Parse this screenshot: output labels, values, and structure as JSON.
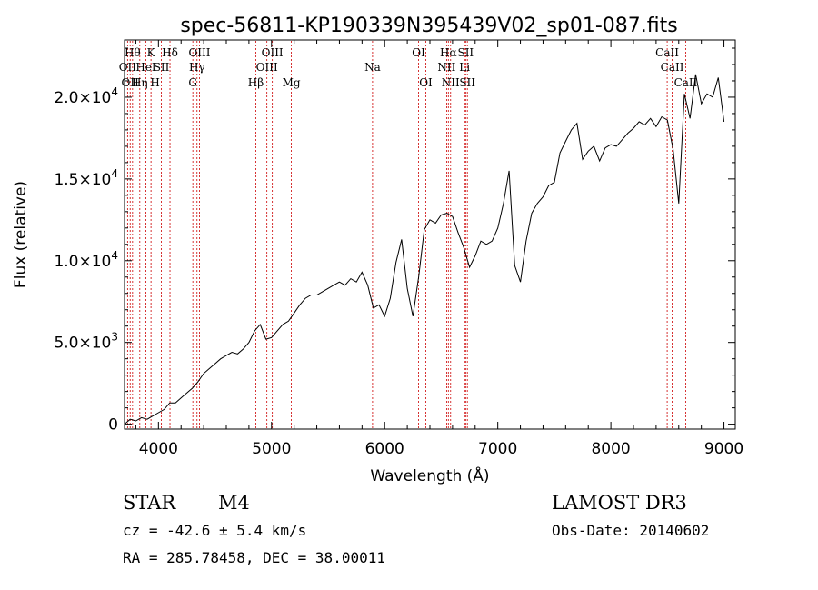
{
  "chart_data": {
    "type": "line",
    "title": "spec-56811-KP190339N395439V02_sp01-087.fits",
    "xlabel": "Wavelength (Å)",
    "ylabel": "Flux (relative)",
    "xlim": [
      3700,
      9100
    ],
    "ylim": [
      -300,
      23500
    ],
    "x_ticks": [
      {
        "value": 4000,
        "label": "4000"
      },
      {
        "value": 5000,
        "label": "5000"
      },
      {
        "value": 6000,
        "label": "6000"
      },
      {
        "value": 7000,
        "label": "7000"
      },
      {
        "value": 8000,
        "label": "8000"
      },
      {
        "value": 9000,
        "label": "9000"
      }
    ],
    "y_ticks": [
      {
        "value": 0,
        "base": "0",
        "exp": ""
      },
      {
        "value": 5000,
        "base": "5.0×10",
        "exp": "3"
      },
      {
        "value": 10000,
        "base": "1.0×10",
        "exp": "4"
      },
      {
        "value": 15000,
        "base": "1.5×10",
        "exp": "4"
      },
      {
        "value": 20000,
        "base": "2.0×10",
        "exp": "4"
      }
    ],
    "series": [
      {
        "name": "spectrum",
        "x": [
          3700,
          3750,
          3800,
          3850,
          3900,
          3950,
          4000,
          4050,
          4100,
          4150,
          4200,
          4250,
          4300,
          4350,
          4400,
          4450,
          4500,
          4550,
          4600,
          4650,
          4700,
          4750,
          4800,
          4850,
          4900,
          4950,
          5000,
          5050,
          5100,
          5150,
          5200,
          5250,
          5300,
          5350,
          5400,
          5450,
          5500,
          5550,
          5600,
          5650,
          5700,
          5750,
          5800,
          5850,
          5900,
          5950,
          6000,
          6050,
          6100,
          6150,
          6200,
          6250,
          6300,
          6350,
          6400,
          6450,
          6500,
          6550,
          6600,
          6650,
          6700,
          6750,
          6800,
          6850,
          6900,
          6950,
          7000,
          7050,
          7100,
          7150,
          7200,
          7250,
          7300,
          7350,
          7400,
          7450,
          7500,
          7550,
          7600,
          7650,
          7700,
          7750,
          7800,
          7850,
          7900,
          7950,
          8000,
          8050,
          8100,
          8150,
          8200,
          8250,
          8300,
          8350,
          8400,
          8450,
          8500,
          8550,
          8600,
          8650,
          8700,
          8750,
          8800,
          8850,
          8900,
          8950,
          9000
        ],
        "y": [
          0,
          300,
          200,
          400,
          300,
          500,
          700,
          900,
          1300,
          1300,
          1600,
          1900,
          2200,
          2600,
          3100,
          3400,
          3700,
          4000,
          4200,
          4400,
          4300,
          4600,
          5000,
          5700,
          6100,
          5200,
          5300,
          5700,
          6100,
          6300,
          6800,
          7300,
          7700,
          7900,
          7900,
          8100,
          8300,
          8500,
          8700,
          8500,
          8900,
          8700,
          9300,
          8500,
          7100,
          7300,
          6600,
          7700,
          9900,
          11300,
          8300,
          6600,
          9000,
          11900,
          12500,
          12300,
          12800,
          12900,
          12700,
          11700,
          10800,
          9600,
          10300,
          11200,
          11000,
          11200,
          12000,
          13500,
          15500,
          9700,
          8700,
          11200,
          12900,
          13500,
          13900,
          14600,
          14800,
          16600,
          17300,
          18000,
          18400,
          16200,
          16700,
          17000,
          16100,
          16900,
          17100,
          17000,
          17400,
          17800,
          18100,
          18500,
          18300,
          18700,
          18200,
          18800,
          18600,
          16800,
          13500,
          20200,
          18700,
          21400,
          19600,
          20200,
          20000,
          21200,
          18500
        ]
      }
    ],
    "spectral_lines": [
      {
        "wavelength": 3727,
        "label": "OII",
        "row": 1
      },
      {
        "wavelength": 3750,
        "label": "OII",
        "row": 2
      },
      {
        "wavelength": 3771,
        "label": "Hθ",
        "row": 0
      },
      {
        "wavelength": 3835,
        "label": "Hη",
        "row": 2
      },
      {
        "wavelength": 3889,
        "label": "HeI",
        "row": 1
      },
      {
        "wavelength": 3934,
        "label": "K",
        "row": 0
      },
      {
        "wavelength": 3970,
        "label": "H",
        "row": 2
      },
      {
        "wavelength": 4026,
        "label": "SII",
        "row": 1
      },
      {
        "wavelength": 4102,
        "label": "Hδ",
        "row": 0
      },
      {
        "wavelength": 4304,
        "label": "G",
        "row": 2
      },
      {
        "wavelength": 4341,
        "label": "Hγ",
        "row": 1
      },
      {
        "wavelength": 4363,
        "label": "OIII",
        "row": 0
      },
      {
        "wavelength": 4861,
        "label": "Hβ",
        "row": 2
      },
      {
        "wavelength": 4959,
        "label": "OIII",
        "row": 1
      },
      {
        "wavelength": 5007,
        "label": "OIII",
        "row": 0
      },
      {
        "wavelength": 5175,
        "label": "Mg",
        "row": 2
      },
      {
        "wavelength": 5893,
        "label": "Na",
        "row": 1
      },
      {
        "wavelength": 6300,
        "label": "OI",
        "row": 0
      },
      {
        "wavelength": 6364,
        "label": "OI",
        "row": 2
      },
      {
        "wavelength": 6548,
        "label": "NII",
        "row": 1
      },
      {
        "wavelength": 6563,
        "label": "Hα",
        "row": 0
      },
      {
        "wavelength": 6583,
        "label": "NII",
        "row": 2
      },
      {
        "wavelength": 6707,
        "label": "Li",
        "row": 1
      },
      {
        "wavelength": 6716,
        "label": "SII",
        "row": 0
      },
      {
        "wavelength": 6731,
        "label": "SII",
        "row": 2
      },
      {
        "wavelength": 8498,
        "label": "CaII",
        "row": 0
      },
      {
        "wavelength": 8542,
        "label": "CaII",
        "row": 1
      },
      {
        "wavelength": 8662,
        "label": "CaII",
        "row": 2
      }
    ]
  },
  "info": {
    "object_class": "STAR",
    "subclass": "M4",
    "cz": "cz = -42.6 ± 5.4 km/s",
    "coords": "RA = 285.78458, DEC =  38.00011",
    "survey": "LAMOST DR3",
    "obs_date": "Obs-Date: 20140602"
  },
  "colors": {
    "line_marker": "#cc0000",
    "spectrum": "#000000",
    "axes": "#000000"
  }
}
